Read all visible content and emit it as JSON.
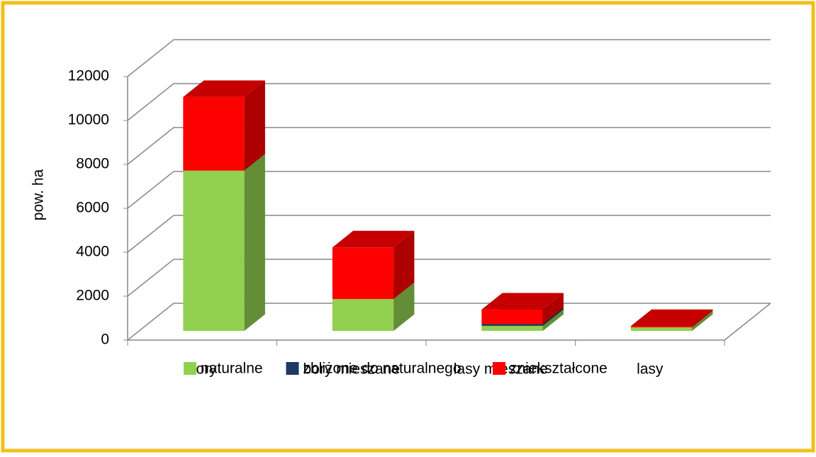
{
  "chart_data": {
    "type": "bar3d_stacked",
    "categories": [
      "bory",
      "bory mieszane",
      "lasy mieszane",
      "lasy"
    ],
    "series": [
      {
        "name": "naturalne",
        "color": "#92d050",
        "values": [
          7300,
          1450,
          230,
          160
        ]
      },
      {
        "name": "zbliżone do naturalnego",
        "color": "#1f3864",
        "values": [
          0,
          0,
          80,
          0
        ]
      },
      {
        "name": "zniekształcone",
        "color": "#ff0000",
        "values": [
          3350,
          2350,
          660,
          60
        ]
      }
    ],
    "y_label": "pow. ha",
    "ylim": [
      0,
      12000
    ],
    "yticks": [
      0,
      2000,
      4000,
      6000,
      8000,
      10000,
      12000
    ],
    "grid": true,
    "legend": "bottom"
  }
}
